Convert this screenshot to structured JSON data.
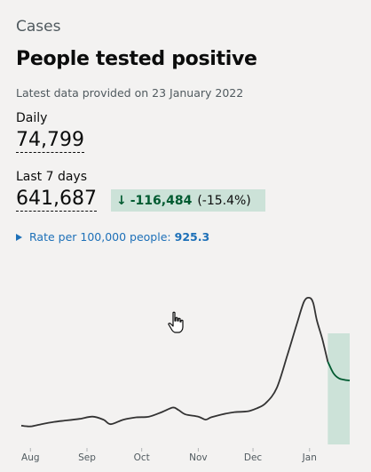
{
  "card": {
    "category": "Cases",
    "title": "People tested positive",
    "updated": "Latest data provided on 23 January 2022"
  },
  "daily": {
    "label": "Daily",
    "value": "74,799"
  },
  "last7": {
    "label": "Last 7 days",
    "value": "641,687",
    "change_arrow": "↓",
    "change_value": "-116,484",
    "change_percent": "(-15.4%)"
  },
  "rate": {
    "label": "Rate per 100,000 people:",
    "value": "925.3"
  },
  "colors": {
    "line": "#333333",
    "highlight_fill": "#cce2d8",
    "highlight_line": "#005a30",
    "link": "#1d70b8"
  },
  "chart_data": {
    "type": "line",
    "x_axis_labels": [
      "Aug",
      "Sep",
      "Oct",
      "Nov",
      "Dec",
      "Jan"
    ],
    "x": [
      "2021-07-27",
      "2021-08-01",
      "2021-08-07",
      "2021-08-14",
      "2021-08-21",
      "2021-08-28",
      "2021-09-04",
      "2021-09-10",
      "2021-09-14",
      "2021-09-21",
      "2021-09-28",
      "2021-10-05",
      "2021-10-12",
      "2021-10-18",
      "2021-10-21",
      "2021-10-25",
      "2021-11-01",
      "2021-11-05",
      "2021-11-08",
      "2021-11-14",
      "2021-11-21",
      "2021-11-28",
      "2021-12-03",
      "2021-12-08",
      "2021-12-14",
      "2021-12-20",
      "2021-12-25",
      "2021-12-29",
      "2022-01-01",
      "2022-01-03",
      "2022-01-05",
      "2022-01-08",
      "2022-01-11",
      "2022-01-14",
      "2022-01-17",
      "2022-01-20",
      "2022-01-23"
    ],
    "series": [
      {
        "values": [
          25000,
          24000,
          27000,
          30000,
          32000,
          34000,
          37000,
          33000,
          27000,
          33000,
          36000,
          37000,
          43000,
          49000,
          46000,
          40000,
          37000,
          33000,
          36000,
          40000,
          43000,
          44000,
          48000,
          55000,
          75000,
          120000,
          160000,
          190000,
          195000,
          188000,
          165000,
          140000,
          110000,
          95000,
          88000,
          86000,
          85000
        ]
      }
    ],
    "highlight_range": [
      "2022-01-11",
      "2022-01-23"
    ],
    "grid": false,
    "legend": "none"
  }
}
